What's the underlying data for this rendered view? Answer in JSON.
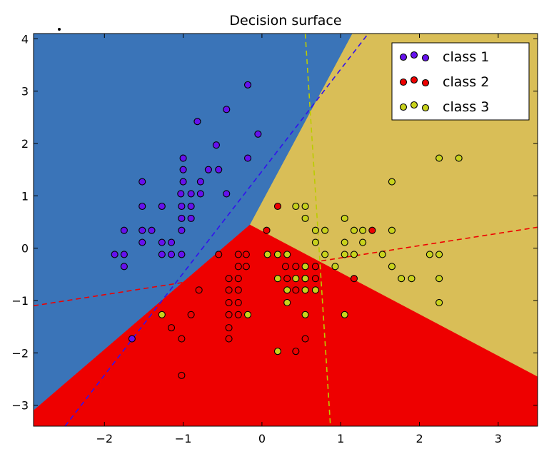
{
  "chart_data": {
    "type": "scatter",
    "title": "Decision surface",
    "xlabel": "",
    "ylabel": "",
    "xlim": [
      -2.9,
      3.5
    ],
    "ylim": [
      -3.4,
      4.1
    ],
    "x_ticks": [
      -2,
      -1,
      0,
      1,
      2,
      3
    ],
    "y_ticks": [
      -3,
      -2,
      -1,
      0,
      1,
      2,
      3,
      4
    ],
    "x_tick_labels": [
      "−2",
      "−1",
      "0",
      "1",
      "2",
      "3"
    ],
    "y_tick_labels": [
      "−3",
      "−2",
      "−1",
      "0",
      "1",
      "2",
      "3",
      "4"
    ],
    "grid": false,
    "legend": {
      "position": "upper-right",
      "entries": [
        "class 1",
        "class 2",
        "class 3"
      ]
    },
    "regions": [
      {
        "class": "class 1",
        "color": "#3a74b8",
        "polygon": [
          [
            -2.9,
            4.1
          ],
          [
            1.15,
            4.1
          ],
          [
            -0.15,
            0.45
          ],
          [
            -2.9,
            -3.1
          ]
        ]
      },
      {
        "class": "class 2",
        "color": "#ee0000",
        "polygon": [
          [
            -2.9,
            -3.1
          ],
          [
            -0.15,
            0.45
          ],
          [
            3.5,
            -2.45
          ],
          [
            3.5,
            -3.4
          ],
          [
            -2.9,
            -3.4
          ]
        ]
      },
      {
        "class": "class 3",
        "color": "#d9be57",
        "polygon": [
          [
            1.15,
            4.1
          ],
          [
            3.5,
            4.1
          ],
          [
            3.5,
            -2.45
          ],
          [
            -0.15,
            0.45
          ]
        ]
      }
    ],
    "boundary_lines": [
      {
        "class": "class 1",
        "color": "#3311ee",
        "points": [
          [
            -2.5,
            -3.4
          ],
          [
            1.35,
            4.1
          ]
        ]
      },
      {
        "class": "class 2",
        "color": "#ee0000",
        "points": [
          [
            -2.9,
            -1.1
          ],
          [
            3.5,
            0.4
          ]
        ]
      },
      {
        "class": "class 3",
        "color": "#bbcc00",
        "points": [
          [
            0.55,
            4.1
          ],
          [
            0.87,
            -3.4
          ]
        ]
      }
    ],
    "series": [
      {
        "name": "class 1",
        "color": "#6611ee",
        "points": [
          [
            -0.18,
            3.12
          ],
          [
            -0.45,
            2.65
          ],
          [
            -0.82,
            2.42
          ],
          [
            -0.05,
            2.18
          ],
          [
            -0.58,
            1.97
          ],
          [
            -0.18,
            1.72
          ],
          [
            -1.0,
            1.72
          ],
          [
            -1.0,
            1.5
          ],
          [
            -0.55,
            1.5
          ],
          [
            -0.68,
            1.5
          ],
          [
            -1.52,
            1.27
          ],
          [
            -1.0,
            1.27
          ],
          [
            -0.78,
            1.27
          ],
          [
            -0.9,
            1.04
          ],
          [
            -1.03,
            1.04
          ],
          [
            -0.78,
            1.04
          ],
          [
            -0.45,
            1.04
          ],
          [
            -1.52,
            0.8
          ],
          [
            -1.27,
            0.8
          ],
          [
            -1.02,
            0.8
          ],
          [
            -0.9,
            0.8
          ],
          [
            -1.02,
            0.57
          ],
          [
            -0.9,
            0.57
          ],
          [
            -1.75,
            0.34
          ],
          [
            -1.52,
            0.34
          ],
          [
            -1.4,
            0.34
          ],
          [
            -1.02,
            0.34
          ],
          [
            -1.52,
            0.11
          ],
          [
            -1.27,
            0.11
          ],
          [
            -1.15,
            0.11
          ],
          [
            -1.87,
            -0.12
          ],
          [
            -1.75,
            -0.12
          ],
          [
            -1.27,
            -0.12
          ],
          [
            -1.15,
            -0.12
          ],
          [
            -1.02,
            -0.12
          ],
          [
            -1.75,
            -0.35
          ],
          [
            -1.65,
            -1.73
          ]
        ]
      },
      {
        "name": "class 2",
        "color": "#ee0000",
        "points": [
          [
            0.2,
            0.8
          ],
          [
            0.06,
            0.34
          ],
          [
            1.4,
            0.34
          ],
          [
            -0.55,
            -0.12
          ],
          [
            -0.3,
            -0.12
          ],
          [
            -0.2,
            -0.12
          ],
          [
            -0.3,
            -0.35
          ],
          [
            -0.2,
            -0.35
          ],
          [
            0.3,
            -0.35
          ],
          [
            0.43,
            -0.35
          ],
          [
            0.68,
            -0.35
          ],
          [
            -0.42,
            -0.58
          ],
          [
            -0.3,
            -0.58
          ],
          [
            0.32,
            -0.58
          ],
          [
            0.55,
            -0.58
          ],
          [
            0.68,
            -0.58
          ],
          [
            1.17,
            -0.58
          ],
          [
            -0.8,
            -0.8
          ],
          [
            -0.42,
            -0.8
          ],
          [
            -0.3,
            -0.8
          ],
          [
            0.43,
            -0.8
          ],
          [
            -0.42,
            -1.04
          ],
          [
            -0.3,
            -1.04
          ],
          [
            -0.42,
            -1.27
          ],
          [
            -0.3,
            -1.27
          ],
          [
            -0.9,
            -1.27
          ],
          [
            -1.15,
            -1.52
          ],
          [
            -0.42,
            -1.52
          ],
          [
            -0.42,
            -1.73
          ],
          [
            -1.02,
            -1.73
          ],
          [
            0.55,
            -1.73
          ],
          [
            0.43,
            -1.97
          ],
          [
            -1.02,
            -2.43
          ]
        ]
      },
      {
        "name": "class 3",
        "color": "#c8d21c",
        "points": [
          [
            2.25,
            1.72
          ],
          [
            2.5,
            1.72
          ],
          [
            1.65,
            1.27
          ],
          [
            0.43,
            0.8
          ],
          [
            0.55,
            0.8
          ],
          [
            0.55,
            0.57
          ],
          [
            1.05,
            0.57
          ],
          [
            0.68,
            0.34
          ],
          [
            0.8,
            0.34
          ],
          [
            1.17,
            0.34
          ],
          [
            1.28,
            0.34
          ],
          [
            1.65,
            0.34
          ],
          [
            0.68,
            0.11
          ],
          [
            1.05,
            0.11
          ],
          [
            1.28,
            0.11
          ],
          [
            0.07,
            -0.12
          ],
          [
            0.2,
            -0.12
          ],
          [
            0.32,
            -0.12
          ],
          [
            0.8,
            -0.12
          ],
          [
            1.05,
            -0.12
          ],
          [
            1.17,
            -0.12
          ],
          [
            1.53,
            -0.12
          ],
          [
            2.13,
            -0.12
          ],
          [
            2.25,
            -0.12
          ],
          [
            0.55,
            -0.35
          ],
          [
            0.93,
            -0.35
          ],
          [
            1.65,
            -0.35
          ],
          [
            0.2,
            -0.58
          ],
          [
            0.43,
            -0.58
          ],
          [
            0.55,
            -0.58
          ],
          [
            1.77,
            -0.58
          ],
          [
            1.9,
            -0.58
          ],
          [
            2.25,
            -0.58
          ],
          [
            0.32,
            -0.8
          ],
          [
            0.55,
            -0.8
          ],
          [
            0.68,
            -0.8
          ],
          [
            0.32,
            -1.04
          ],
          [
            2.25,
            -1.04
          ],
          [
            -1.27,
            -1.27
          ],
          [
            -0.18,
            -1.27
          ],
          [
            0.55,
            -1.27
          ],
          [
            1.05,
            -1.27
          ],
          [
            0.2,
            -1.97
          ]
        ]
      }
    ]
  }
}
